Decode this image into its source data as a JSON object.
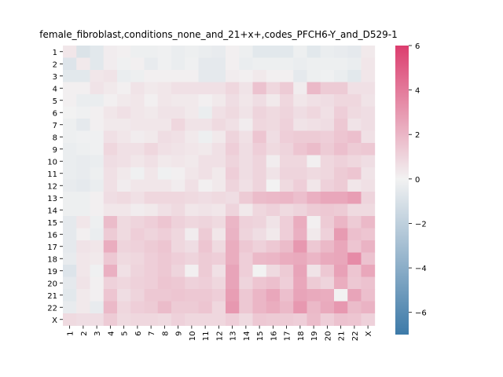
{
  "chart_data": {
    "type": "heatmap",
    "title": "female_fibroblast,conditions_none_and_21+x+,codes_PFCH6-Y_and_D529-1",
    "xlabel": "",
    "ylabel": "",
    "rows": [
      "1",
      "2",
      "3",
      "4",
      "5",
      "6",
      "7",
      "8",
      "9",
      "10",
      "11",
      "12",
      "13",
      "14",
      "15",
      "16",
      "17",
      "18",
      "19",
      "20",
      "21",
      "22",
      "X"
    ],
    "columns": [
      "1",
      "2",
      "3",
      "4",
      "5",
      "6",
      "7",
      "8",
      "9",
      "10",
      "11",
      "12",
      "13",
      "14",
      "15",
      "16",
      "17",
      "18",
      "19",
      "20",
      "21",
      "22",
      "X"
    ],
    "colorbar": {
      "min": -7,
      "max": 6,
      "ticks": [
        6,
        4,
        2,
        0,
        -2,
        -4,
        -6
      ],
      "tick_labels": [
        "6",
        "4",
        "2",
        "0",
        "−2",
        "−4",
        "−6"
      ],
      "low_color": "#3d7aa8",
      "mid_color": "#f2f2f2",
      "high_color": "#dc3d6e"
    },
    "values": [
      [
        0.4,
        -0.9,
        -0.6,
        0.2,
        0.1,
        -0.2,
        -0.2,
        -0.1,
        -0.3,
        -0.2,
        -0.3,
        -0.4,
        0.1,
        -0.2,
        -0.6,
        -0.6,
        -0.6,
        -0.2,
        -0.6,
        -0.3,
        -0.4,
        -0.5,
        0.3
      ],
      [
        -0.8,
        0.3,
        -0.6,
        0.2,
        -0.1,
        0.1,
        -0.4,
        -0.1,
        -0.3,
        -0.1,
        -0.5,
        -0.5,
        0.1,
        -0.3,
        -0.2,
        -0.2,
        -0.2,
        -0.3,
        -0.2,
        -0.2,
        -0.2,
        -0.3,
        0.4
      ],
      [
        -0.6,
        -0.6,
        0.4,
        0.5,
        -0.3,
        -0.2,
        0.1,
        0.1,
        0.1,
        0.1,
        -0.5,
        -0.5,
        0.2,
        0.1,
        0.3,
        0.1,
        0.1,
        -0.5,
        -0.2,
        -0.1,
        -0.3,
        -0.6,
        0.4
      ],
      [
        0.1,
        0.1,
        0.5,
        0.3,
        0.1,
        0.5,
        0.3,
        0.4,
        0.6,
        0.6,
        0.6,
        0.6,
        0.9,
        0.5,
        1.6,
        0.9,
        1.3,
        0.2,
        1.9,
        1.3,
        1.3,
        0.6,
        0.6
      ],
      [
        0.1,
        -0.3,
        -0.3,
        0.1,
        0.3,
        0.4,
        0.1,
        0.4,
        0.3,
        0.3,
        0.1,
        0.3,
        0.7,
        0.4,
        0.7,
        0.3,
        0.9,
        0.4,
        0.6,
        0.7,
        0.9,
        0.9,
        0.5
      ],
      [
        0.0,
        -0.1,
        0.1,
        0.4,
        0.6,
        0.4,
        0.3,
        0.5,
        0.5,
        0.3,
        -0.3,
        0.6,
        0.8,
        0.5,
        1.0,
        0.8,
        1.0,
        0.7,
        0.9,
        0.6,
        1.2,
        0.8,
        0.7
      ],
      [
        -0.2,
        -0.5,
        0.1,
        0.3,
        0.3,
        0.4,
        0.4,
        0.4,
        0.9,
        0.5,
        0.5,
        0.8,
        0.6,
        0.2,
        0.9,
        0.8,
        1.1,
        0.5,
        0.6,
        0.7,
        1.4,
        0.5,
        0.7
      ],
      [
        -0.2,
        -0.1,
        -0.1,
        0.6,
        0.4,
        0.2,
        0.3,
        0.7,
        0.6,
        0.3,
        -0.2,
        0.3,
        1.0,
        0.6,
        1.5,
        0.7,
        1.2,
        1.3,
        1.3,
        1.2,
        1.5,
        1.7,
        0.6
      ],
      [
        -0.3,
        -0.2,
        -0.1,
        0.9,
        0.6,
        0.6,
        0.9,
        0.6,
        0.5,
        0.4,
        0.3,
        0.6,
        1.2,
        0.7,
        1.2,
        0.8,
        1.0,
        1.5,
        1.8,
        1.3,
        1.7,
        1.3,
        1.4
      ],
      [
        -0.3,
        -0.4,
        -0.3,
        0.7,
        0.6,
        0.4,
        0.6,
        0.3,
        0.4,
        0.3,
        0.6,
        0.6,
        1.0,
        0.7,
        1.0,
        0.2,
        0.9,
        0.9,
        0.1,
        0.9,
        1.1,
        0.9,
        0.7
      ],
      [
        -0.3,
        -0.4,
        -0.2,
        0.6,
        0.3,
        -0.1,
        0.4,
        -0.1,
        0.1,
        0.4,
        0.6,
        0.3,
        1.2,
        0.7,
        1.0,
        0.5,
        1.0,
        1.0,
        0.8,
        0.9,
        1.3,
        1.5,
        0.5
      ],
      [
        -0.4,
        -0.5,
        -0.3,
        0.6,
        0.2,
        0.4,
        0.4,
        0.4,
        0.2,
        0.6,
        0.1,
        0.3,
        1.0,
        0.6,
        1.0,
        0.0,
        0.8,
        1.2,
        0.4,
        1.1,
        1.3,
        0.4,
        0.6
      ],
      [
        -0.2,
        -0.2,
        0.1,
        0.7,
        0.8,
        0.6,
        0.9,
        0.9,
        0.9,
        0.8,
        0.7,
        0.8,
        0.7,
        1.3,
        1.8,
        1.9,
        2.0,
        1.7,
        2.2,
        2.5,
        2.5,
        2.8,
        1.0
      ],
      [
        -0.2,
        -0.2,
        0.1,
        0.4,
        0.4,
        0.2,
        0.3,
        0.6,
        0.8,
        0.4,
        0.5,
        0.4,
        1.0,
        0.3,
        0.9,
        1.1,
        0.8,
        1.0,
        1.3,
        1.4,
        1.3,
        0.8,
        0.8
      ],
      [
        -0.5,
        0.4,
        -0.2,
        1.8,
        0.8,
        1.0,
        1.2,
        1.5,
        1.1,
        0.9,
        1.0,
        0.8,
        2.0,
        1.1,
        1.0,
        0.5,
        1.2,
        2.3,
        0.1,
        1.3,
        2.0,
        1.3,
        1.9
      ],
      [
        -0.5,
        0.1,
        -0.3,
        1.3,
        0.8,
        1.2,
        1.0,
        1.2,
        0.9,
        0.2,
        1.3,
        0.4,
        2.1,
        1.0,
        0.7,
        0.3,
        1.2,
        2.2,
        0.3,
        1.1,
        2.9,
        1.7,
        1.5
      ],
      [
        -0.5,
        0.5,
        0.4,
        2.3,
        1.0,
        1.1,
        1.3,
        1.5,
        0.9,
        0.7,
        1.5,
        0.8,
        2.3,
        1.4,
        1.1,
        1.4,
        1.8,
        3.0,
        1.4,
        1.9,
        2.5,
        1.5,
        2.1
      ],
      [
        -0.4,
        0.4,
        0.3,
        1.4,
        0.8,
        0.9,
        1.2,
        1.4,
        1.2,
        1.0,
        1.3,
        1.2,
        2.3,
        1.2,
        1.9,
        2.0,
        2.3,
        2.4,
        2.0,
        2.4,
        2.5,
        3.4,
        1.6
      ],
      [
        -0.8,
        0.4,
        -0.1,
        2.2,
        0.6,
        1.0,
        1.2,
        1.4,
        1.0,
        0.1,
        1.3,
        0.6,
        2.6,
        1.2,
        0.0,
        0.8,
        1.3,
        2.6,
        0.5,
        1.4,
        2.7,
        1.5,
        2.5
      ],
      [
        -0.5,
        0.5,
        0.1,
        1.1,
        0.9,
        1.1,
        1.2,
        1.5,
        1.4,
        1.1,
        1.2,
        0.9,
        2.6,
        1.0,
        1.5,
        1.7,
        1.2,
        2.5,
        1.3,
        1.0,
        2.3,
        1.4,
        1.6
      ],
      [
        -0.6,
        0.3,
        0.1,
        1.5,
        0.7,
        1.0,
        1.4,
        1.4,
        1.5,
        1.4,
        1.4,
        1.2,
        2.8,
        1.4,
        2.0,
        2.5,
        1.7,
        2.6,
        2.4,
        2.3,
        0.0,
        2.6,
        1.7
      ],
      [
        -0.4,
        0.3,
        -0.4,
        1.9,
        0.9,
        1.2,
        1.3,
        1.8,
        1.3,
        1.3,
        1.5,
        0.9,
        3.0,
        1.4,
        2.0,
        2.3,
        1.9,
        3.0,
        1.9,
        2.4,
        3.0,
        1.8,
        2.1
      ],
      [
        0.8,
        0.7,
        0.7,
        1.3,
        0.8,
        0.9,
        0.9,
        0.8,
        1.1,
        0.9,
        0.9,
        0.9,
        1.2,
        0.8,
        1.4,
        1.3,
        1.3,
        1.2,
        1.8,
        1.2,
        1.6,
        1.5,
        1.1
      ]
    ]
  }
}
